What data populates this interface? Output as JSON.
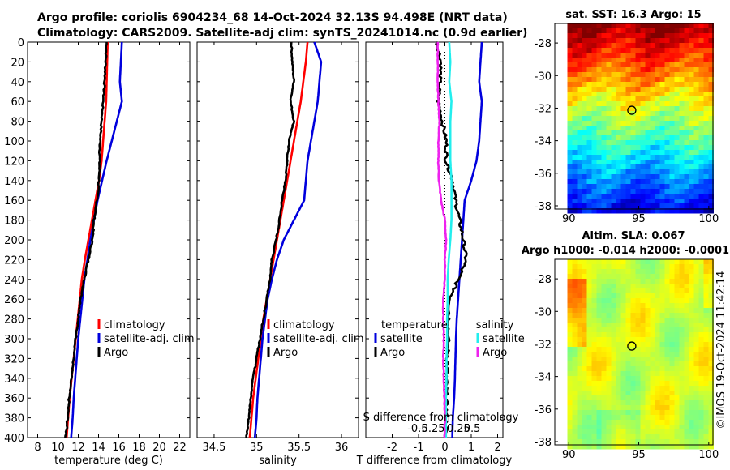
{
  "header": {
    "line1": "Argo profile: coriolis 6904234_68 14-Oct-2024 32.13S 94.498E (NRT data)",
    "line2": "Climatology: CARS2009. Satellite-adj clim: synTS_20241014.nc (0.9d earlier)"
  },
  "colors": {
    "climatology": "#ff0000",
    "satellite": "#0000dd",
    "argo": "#000000",
    "salinity_satellite": "#22eeee",
    "salinity_argo": "#ee22ee"
  },
  "copyright": "©IMOS 19-Oct-2024 11:42:14",
  "chart_data": [
    {
      "id": "temperature",
      "type": "line",
      "xlabel": "temperature (deg C)",
      "ylabel": "",
      "xlim": [
        7,
        23
      ],
      "ylim": [
        400,
        0
      ],
      "xticks": [
        8,
        10,
        12,
        14,
        16,
        18,
        20,
        22
      ],
      "yticks": [
        0,
        20,
        40,
        60,
        80,
        100,
        120,
        140,
        160,
        180,
        200,
        220,
        240,
        260,
        280,
        300,
        320,
        340,
        360,
        380,
        400
      ],
      "legend": [
        "climatology",
        "satellite-adj. clim",
        "Argo"
      ],
      "series": [
        {
          "name": "climatology",
          "color": "#ff0000",
          "depth": [
            0,
            20,
            40,
            60,
            80,
            100,
            120,
            140,
            160,
            180,
            200,
            220,
            240,
            260,
            280,
            300,
            320,
            340,
            360,
            380,
            400
          ],
          "values": [
            14.9,
            14.85,
            14.8,
            14.75,
            14.6,
            14.45,
            14.3,
            14.05,
            13.7,
            13.35,
            13.0,
            12.65,
            12.35,
            12.15,
            11.95,
            11.75,
            11.55,
            11.35,
            11.15,
            11.0,
            10.85
          ]
        },
        {
          "name": "satellite-adj. clim",
          "color": "#0000dd",
          "depth": [
            0,
            20,
            40,
            60,
            80,
            100,
            120,
            140,
            160,
            180,
            200,
            220,
            240,
            260,
            280,
            300,
            320,
            340,
            360,
            380,
            400
          ],
          "values": [
            16.3,
            16.2,
            16.1,
            16.3,
            15.8,
            15.3,
            14.8,
            14.35,
            13.9,
            13.55,
            13.2,
            12.9,
            12.6,
            12.4,
            12.2,
            12.0,
            11.85,
            11.7,
            11.55,
            11.45,
            11.3
          ]
        },
        {
          "name": "Argo",
          "color": "#000000",
          "depth": [
            0,
            20,
            40,
            60,
            80,
            100,
            120,
            140,
            160,
            180,
            200,
            220,
            240,
            260,
            280,
            300,
            320,
            340,
            360,
            380,
            400
          ],
          "values": [
            14.8,
            14.7,
            14.6,
            14.45,
            14.3,
            14.15,
            14.1,
            14.05,
            13.85,
            13.55,
            13.4,
            13.0,
            12.6,
            12.25,
            12.0,
            11.75,
            11.55,
            11.3,
            11.1,
            10.95,
            10.75
          ]
        }
      ]
    },
    {
      "id": "salinity",
      "type": "line",
      "xlabel": "salinity",
      "xlim": [
        34.3,
        36.2
      ],
      "ylim": [
        400,
        0
      ],
      "xticks": [
        34.5,
        35,
        35.5,
        36
      ],
      "legend": [
        "climatology",
        "satellite-adj. clim",
        "Argo"
      ],
      "series": [
        {
          "name": "climatology",
          "color": "#ff0000",
          "depth": [
            0,
            20,
            40,
            60,
            80,
            100,
            120,
            140,
            160,
            180,
            200,
            220,
            240,
            260,
            280,
            300,
            320,
            340,
            360,
            380,
            400
          ],
          "values": [
            35.6,
            35.58,
            35.55,
            35.52,
            35.48,
            35.44,
            35.4,
            35.36,
            35.32,
            35.28,
            35.24,
            35.2,
            35.16,
            35.12,
            35.08,
            35.05,
            35.02,
            34.99,
            34.96,
            34.94,
            34.92
          ]
        },
        {
          "name": "satellite-adj. clim",
          "color": "#0000dd",
          "depth": [
            0,
            20,
            40,
            60,
            80,
            100,
            120,
            140,
            160,
            180,
            200,
            220,
            240,
            260,
            280,
            300,
            320,
            340,
            360,
            380,
            400
          ],
          "values": [
            35.68,
            35.76,
            35.74,
            35.72,
            35.68,
            35.64,
            35.6,
            35.58,
            35.56,
            35.44,
            35.32,
            35.24,
            35.18,
            35.13,
            35.1,
            35.07,
            35.05,
            35.03,
            35.01,
            35.0,
            34.98
          ]
        },
        {
          "name": "Argo",
          "color": "#000000",
          "depth": [
            0,
            20,
            40,
            60,
            80,
            100,
            120,
            140,
            160,
            180,
            200,
            220,
            240,
            260,
            280,
            300,
            320,
            340,
            360,
            380,
            400
          ],
          "values": [
            35.41,
            35.42,
            35.44,
            35.4,
            35.44,
            35.38,
            35.36,
            35.34,
            35.3,
            35.27,
            35.23,
            35.18,
            35.16,
            35.12,
            35.08,
            35.04,
            35.0,
            34.96,
            34.93,
            34.91,
            34.88
          ]
        }
      ]
    },
    {
      "id": "difference",
      "type": "line",
      "xlabel": "T difference from climatology",
      "top_xlabel": "S difference from climatology",
      "xlim": [
        -3,
        2.2
      ],
      "ylim": [
        400,
        0
      ],
      "xticks": [
        -2,
        -1,
        0,
        1,
        2
      ],
      "top_xlim": [
        -0.75,
        0.75
      ],
      "top_xticks": [
        -0.5,
        -0.25,
        0.25,
        0.5
      ],
      "top_xticklabels": [
        "-0.5",
        "-0.25",
        "0.25",
        "0.5"
      ],
      "legend_temperature_title": "temperature",
      "legend_salinity_title": "salinity",
      "legend_temperature": [
        "satellite",
        "Argo"
      ],
      "legend_salinity": [
        "satellite",
        "Argo"
      ],
      "series": [
        {
          "name": "T satellite",
          "axis": "T",
          "color": "#0000dd",
          "depth": [
            0,
            20,
            40,
            60,
            80,
            100,
            120,
            140,
            160,
            180,
            200,
            220,
            240,
            260,
            280,
            300,
            320,
            340,
            360,
            380,
            400
          ],
          "values": [
            1.4,
            1.35,
            1.3,
            1.4,
            1.35,
            1.3,
            1.2,
            1.0,
            0.75,
            0.7,
            0.65,
            0.6,
            0.55,
            0.5,
            0.45,
            0.42,
            0.4,
            0.38,
            0.35,
            0.3,
            0.28
          ]
        },
        {
          "name": "T Argo",
          "axis": "T",
          "color": "#000000",
          "depth": [
            0,
            20,
            40,
            60,
            80,
            100,
            120,
            140,
            160,
            180,
            200,
            220,
            240,
            260,
            280,
            300,
            320,
            340,
            360,
            380,
            400
          ],
          "values": [
            -0.3,
            -0.15,
            -0.2,
            -0.25,
            -0.1,
            0.05,
            0.05,
            0.3,
            0.4,
            0.55,
            0.7,
            0.8,
            0.5,
            0.2,
            0.15,
            0.12,
            0.1,
            0.05,
            0.05,
            0.05,
            0.02
          ]
        },
        {
          "name": "S satellite",
          "axis": "S",
          "color": "#22eeee",
          "depth": [
            0,
            20,
            40,
            60,
            80,
            100,
            120,
            140,
            160,
            180,
            200,
            220,
            240,
            260,
            280,
            300,
            320,
            340,
            360,
            380,
            400
          ],
          "values": [
            0.08,
            0.1,
            0.08,
            0.12,
            0.1,
            0.1,
            0.1,
            0.12,
            0.12,
            0.12,
            0.1,
            0.07,
            0.05,
            0.05,
            0.04,
            0.04,
            0.03,
            0.03,
            0.02,
            0.02,
            0.02
          ]
        },
        {
          "name": "S Argo",
          "axis": "S",
          "color": "#ee22ee",
          "depth": [
            0,
            20,
            40,
            60,
            80,
            100,
            120,
            140,
            160,
            180,
            200,
            220,
            240,
            260,
            280,
            300,
            320,
            340,
            360,
            380,
            400
          ],
          "values": [
            -0.13,
            -0.13,
            -0.13,
            -0.12,
            -0.1,
            -0.12,
            -0.12,
            -0.11,
            -0.07,
            0.0,
            0.02,
            0.0,
            0.0,
            -0.03,
            -0.03,
            -0.02,
            -0.03,
            -0.02,
            -0.01,
            0.0,
            -0.01
          ]
        }
      ]
    },
    {
      "id": "sst_map",
      "type": "heatmap",
      "title": "sat. SST: 16.3 Argo: 15",
      "xlim": [
        89,
        100.3
      ],
      "ylim": [
        -38.2,
        -26.8
      ],
      "xticks": [
        90,
        95,
        100
      ],
      "yticks": [
        -28,
        -30,
        -32,
        -34,
        -36,
        -38
      ],
      "marker": {
        "lon": 94.5,
        "lat": -32.13
      }
    },
    {
      "id": "sla_map",
      "type": "heatmap",
      "title": "Altim. SLA: 0.067",
      "subtitle": "Argo h1000: -0.014 h2000: -0.0001",
      "xlim": [
        89,
        100.3
      ],
      "ylim": [
        -38.2,
        -26.8
      ],
      "xticks": [
        90,
        95,
        100
      ],
      "yticks": [
        -28,
        -30,
        -32,
        -34,
        -36,
        -38
      ],
      "marker": {
        "lon": 94.5,
        "lat": -32.13
      }
    }
  ]
}
